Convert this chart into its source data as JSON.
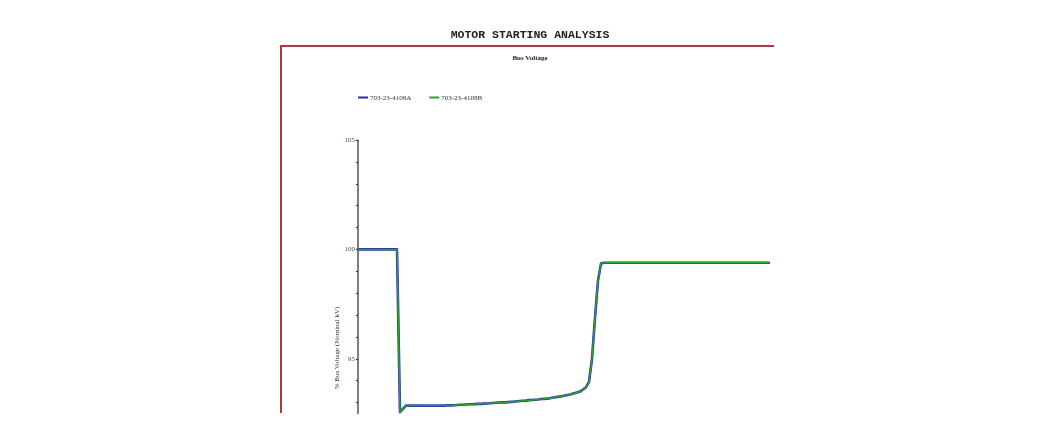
{
  "chart_data": {
    "type": "line",
    "title": "MOTOR STARTING ANALYSIS",
    "subtitle": "Bus Voltage",
    "ylabel": "% Bus Voltage (Nominal kV)",
    "categories": [
      null,
      null,
      null,
      null,
      null,
      null,
      null,
      null,
      null,
      null,
      null,
      null,
      null,
      null,
      null,
      null,
      null,
      null,
      null,
      null,
      null,
      null,
      null,
      null,
      null,
      null,
      null,
      null,
      null,
      null,
      null,
      null,
      null,
      null,
      null,
      null,
      null,
      null,
      null,
      null,
      null,
      null,
      null,
      null,
      null,
      null,
      null,
      null,
      null,
      null,
      null,
      null,
      null,
      null,
      null,
      null,
      null,
      null,
      null,
      null,
      null,
      null,
      null,
      null,
      null,
      null,
      null,
      null,
      null,
      null,
      null,
      null,
      null,
      null,
      null,
      null,
      null,
      null,
      null,
      null,
      null,
      null,
      null,
      null,
      null,
      null,
      null,
      null,
      null,
      null,
      null,
      null,
      null,
      null,
      null,
      null,
      null,
      null,
      null,
      null,
      null,
      null,
      null,
      null,
      null,
      null,
      null,
      null,
      null,
      null,
      null,
      null,
      null,
      null,
      null,
      null,
      null,
      null,
      null,
      null,
      null,
      null,
      null,
      null,
      null,
      null,
      null,
      null,
      null,
      null,
      null,
      null,
      null,
      null,
      null,
      null,
      null,
      null
    ],
    "series": [
      {
        "name": "703-23-4108A",
        "color": "#2b2bb0",
        "values": [
          100,
          100,
          100,
          100,
          100,
          100,
          100,
          100,
          100,
          100,
          100,
          100,
          100,
          100,
          92.56,
          92.71,
          92.86,
          92.86,
          92.86,
          92.86,
          92.86,
          92.86,
          92.86,
          92.86,
          92.86,
          92.86,
          92.86,
          92.86,
          92.86,
          92.86,
          92.87,
          92.87,
          92.88,
          92.89,
          92.9,
          92.9,
          92.91,
          92.92,
          92.92,
          92.93,
          92.94,
          92.94,
          92.95,
          92.96,
          92.97,
          92.98,
          92.99,
          93,
          93.01,
          93.01,
          93.02,
          93.03,
          93.04,
          93.06,
          93.07,
          93.08,
          93.09,
          93.11,
          93.12,
          93.13,
          93.14,
          93.16,
          93.17,
          93.18,
          93.2,
          93.23,
          93.25,
          93.27,
          93.29,
          93.32,
          93.35,
          93.38,
          93.42,
          93.46,
          93.5,
          93.6,
          93.7,
          93.95,
          95,
          96.87,
          98.58,
          99.35,
          99.39,
          99.39,
          99.39,
          99.39,
          99.39,
          99.39,
          99.39,
          99.39,
          99.39,
          99.39,
          99.39,
          99.39,
          99.39,
          99.39,
          99.39,
          99.39,
          99.39,
          99.39,
          99.39,
          99.39,
          99.39,
          99.39,
          99.39,
          99.39,
          99.39,
          99.39,
          99.39,
          99.39,
          99.39,
          99.39,
          99.39,
          99.39,
          99.39,
          99.39,
          99.39,
          99.39,
          99.39,
          99.39,
          99.39,
          99.39,
          99.39,
          99.39,
          99.39,
          99.39,
          99.39,
          99.39,
          99.39,
          99.39,
          99.39,
          99.39,
          99.39,
          99.39,
          99.39,
          99.39,
          99.39,
          99.39
        ]
      },
      {
        "name": "703-23-4108B",
        "color": "#2ca02c",
        "values": [
          100,
          100,
          100,
          100,
          100,
          100,
          100,
          100,
          100,
          100,
          100,
          100,
          100,
          100,
          92.56,
          92.71,
          92.86,
          92.86,
          92.86,
          92.86,
          92.86,
          92.86,
          92.86,
          92.86,
          92.86,
          92.86,
          92.86,
          92.86,
          92.86,
          92.86,
          92.87,
          92.87,
          92.88,
          92.89,
          92.9,
          92.9,
          92.91,
          92.92,
          92.92,
          92.93,
          92.94,
          92.94,
          92.95,
          92.96,
          92.97,
          92.98,
          92.99,
          93,
          93.01,
          93.01,
          93.02,
          93.03,
          93.04,
          93.06,
          93.07,
          93.08,
          93.09,
          93.11,
          93.12,
          93.13,
          93.14,
          93.16,
          93.17,
          93.18,
          93.2,
          93.23,
          93.25,
          93.27,
          93.29,
          93.32,
          93.35,
          93.38,
          93.42,
          93.46,
          93.5,
          93.6,
          93.7,
          93.95,
          95,
          96.87,
          98.58,
          99.35,
          99.39,
          99.39,
          99.39,
          99.39,
          99.39,
          99.39,
          99.39,
          99.39,
          99.39,
          99.39,
          99.39,
          99.39,
          99.39,
          99.39,
          99.39,
          99.39,
          99.39,
          99.39,
          99.39,
          99.39,
          99.39,
          99.39,
          99.39,
          99.39,
          99.39,
          99.39,
          99.39,
          99.39,
          99.39,
          99.39,
          99.39,
          99.39,
          99.39,
          99.39,
          99.39,
          99.39,
          99.39,
          99.39,
          99.39,
          99.39,
          99.39,
          99.39,
          99.39,
          99.39,
          99.39,
          99.39,
          99.39,
          99.39,
          99.39,
          99.39,
          99.39,
          99.39,
          99.39,
          99.39,
          99.39,
          99.39
        ]
      }
    ],
    "ylim": [
      92.5,
      105
    ],
    "yticks": [
      {
        "value": 93,
        "label": null
      },
      {
        "value": 94,
        "label": null
      },
      95,
      {
        "value": 96,
        "label": null
      },
      {
        "value": 97,
        "label": null
      },
      {
        "value": 98,
        "label": null
      },
      {
        "value": 99,
        "label": null
      },
      100,
      {
        "value": 101,
        "label": null
      },
      {
        "value": 102,
        "label": null
      },
      {
        "value": 103,
        "label": null
      },
      {
        "value": 104,
        "label": null
      },
      105
    ],
    "legend": "top left",
    "tick_labels": "y"
  }
}
